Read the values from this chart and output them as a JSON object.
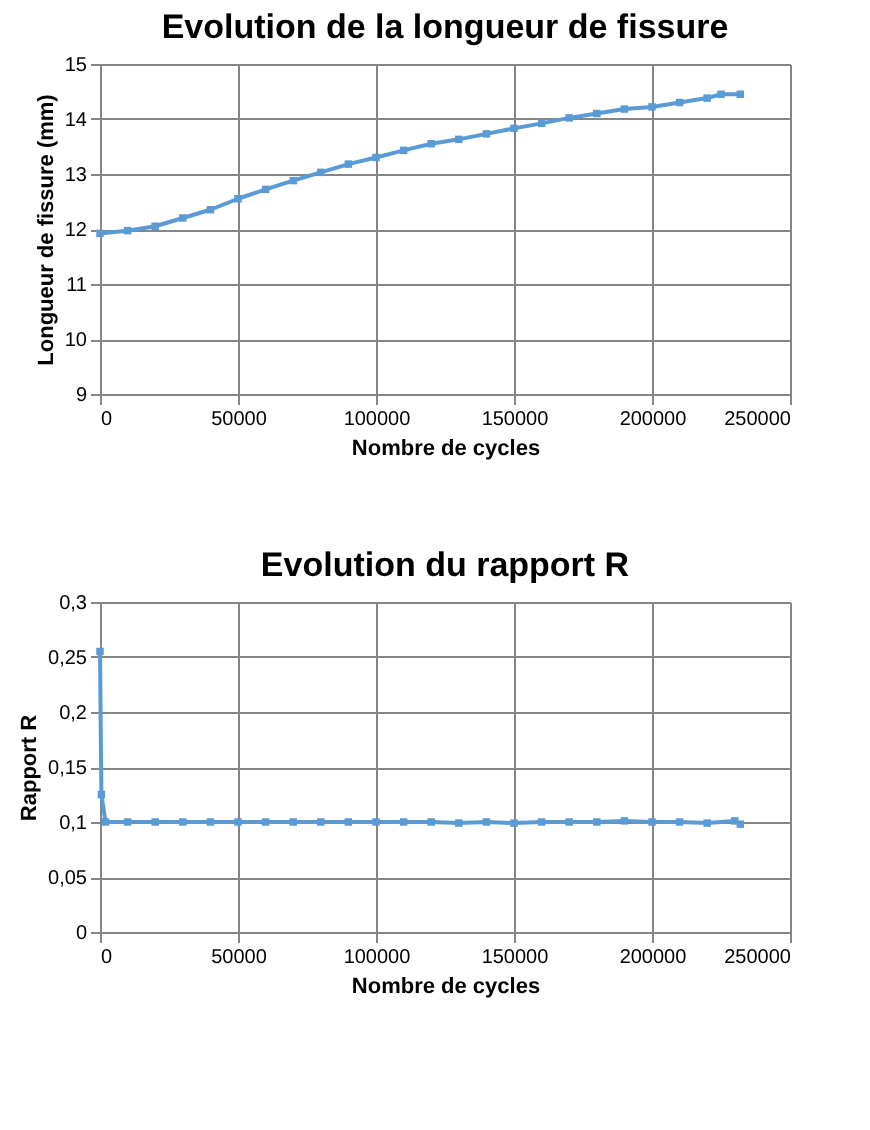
{
  "chart_data": [
    {
      "type": "line",
      "title": "Evolution de la longueur de fissure",
      "xlabel": "Nombre de cycles",
      "ylabel": "Longueur de fissure (mm)",
      "x": [
        0,
        10000,
        20000,
        30000,
        40000,
        50000,
        60000,
        70000,
        80000,
        90000,
        100000,
        110000,
        120000,
        130000,
        140000,
        150000,
        160000,
        170000,
        180000,
        190000,
        200000,
        210000,
        220000,
        225000,
        232000
      ],
      "series": [
        {
          "color": "#5b9bd5",
          "values": [
            11.92,
            11.97,
            12.05,
            12.2,
            12.35,
            12.55,
            12.72,
            12.88,
            13.03,
            13.18,
            13.3,
            13.43,
            13.55,
            13.63,
            13.73,
            13.83,
            13.92,
            14.02,
            14.1,
            14.18,
            14.22,
            14.3,
            14.38,
            14.45,
            14.45
          ]
        }
      ],
      "xlim": [
        0,
        250000
      ],
      "xticks": [
        0,
        50000,
        100000,
        150000,
        200000,
        250000
      ],
      "ylim": [
        9,
        15
      ],
      "yticks": [
        9,
        10,
        11,
        12,
        13,
        14,
        15
      ],
      "grid": true,
      "marker": "square",
      "line_style": "solid"
    },
    {
      "type": "line",
      "title": "Evolution du rapport R",
      "xlabel": "Nombre de cycles",
      "ylabel": "Rapport R",
      "x": [
        0,
        500,
        2000,
        10000,
        20000,
        30000,
        40000,
        50000,
        60000,
        70000,
        80000,
        90000,
        100000,
        110000,
        120000,
        130000,
        140000,
        150000,
        160000,
        170000,
        180000,
        190000,
        200000,
        210000,
        220000,
        230000,
        232000
      ],
      "series": [
        {
          "color": "#5b9bd5",
          "values": [
            0.255,
            0.125,
            0.1,
            0.1,
            0.1,
            0.1,
            0.1,
            0.1,
            0.1,
            0.1,
            0.1,
            0.1,
            0.1,
            0.1,
            0.1,
            0.099,
            0.1,
            0.099,
            0.1,
            0.1,
            0.1,
            0.101,
            0.1,
            0.1,
            0.099,
            0.101,
            0.098
          ]
        }
      ],
      "xlim": [
        0,
        250000
      ],
      "xticks": [
        0,
        50000,
        100000,
        150000,
        200000,
        250000
      ],
      "ylim": [
        0,
        0.3
      ],
      "yticks": [
        0,
        {
          "value": 0.05,
          "label": "0,05"
        },
        {
          "value": 0.1,
          "label": "0,1"
        },
        {
          "value": 0.15,
          "label": "0,15"
        },
        {
          "value": 0.2,
          "label": "0,2"
        },
        {
          "value": 0.25,
          "label": "0,25"
        },
        {
          "value": 0.3,
          "label": "0,3"
        }
      ],
      "grid": true,
      "marker": "square",
      "line_style": "solid"
    }
  ]
}
